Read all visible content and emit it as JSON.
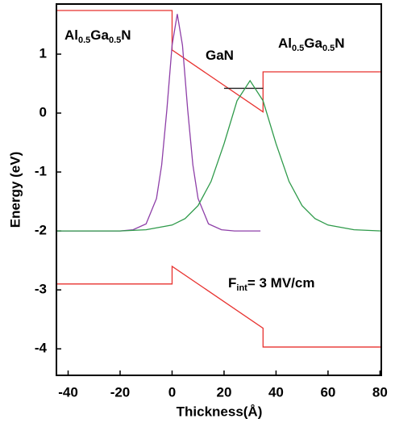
{
  "chart_data": {
    "type": "line",
    "x_label": "Thickness(Å)",
    "y_label": "Energy (eV)",
    "xlim": [
      -44.5,
      80.5
    ],
    "xticks": [
      -40,
      -20,
      0,
      20,
      40,
      60,
      80
    ],
    "ylim": [
      -4.45,
      1.85
    ],
    "yticks": [
      -4,
      -3,
      -2,
      -1,
      0,
      1
    ],
    "series": [
      {
        "color": "#e8322f",
        "x": [
          -44.5,
          0,
          0,
          35,
          35,
          80.5
        ],
        "values": [
          1.74,
          1.74,
          1.07,
          0.02,
          0.7,
          0.7
        ]
      },
      {
        "color": "#e8322f",
        "x": [
          -44.5,
          0,
          0,
          35,
          35,
          80.5
        ],
        "values": [
          -2.9,
          -2.9,
          -2.6,
          -3.65,
          -3.97,
          -3.97
        ]
      },
      {
        "color": "#222222",
        "x": [
          20,
          35
        ],
        "values": [
          0.42,
          0.42
        ]
      },
      {
        "color": "#8e3fa8",
        "x": [
          -44.5,
          -30,
          -20,
          -15,
          -10,
          -6,
          -4,
          -2,
          0,
          2,
          4,
          6,
          8,
          10,
          14,
          19,
          24,
          34
        ],
        "values": [
          -2,
          -2,
          -2,
          -1.98,
          -1.88,
          -1.45,
          -0.88,
          0.06,
          1.15,
          1.68,
          1.15,
          0.06,
          -0.88,
          -1.45,
          -1.88,
          -1.98,
          -2,
          -2
        ]
      },
      {
        "color": "#2e9a4a",
        "x": [
          -44.5,
          -20,
          -10,
          0,
          5,
          10,
          15,
          20,
          25,
          30,
          35,
          40,
          45,
          50,
          55,
          60,
          70,
          80.5
        ],
        "values": [
          -2,
          -2,
          -1.98,
          -1.9,
          -1.79,
          -1.57,
          -1.16,
          -0.52,
          0.21,
          0.55,
          0.21,
          -0.52,
          -1.16,
          -1.57,
          -1.79,
          -1.9,
          -1.98,
          -2
        ]
      }
    ],
    "annotations": [
      {
        "parts": [
          {
            "text": "Al"
          },
          {
            "text": "0.5",
            "sub": true
          },
          {
            "text": "Ga"
          },
          {
            "text": "0.5",
            "sub": true
          },
          {
            "text": "N"
          }
        ]
      },
      {
        "parts": [
          {
            "text": "GaN"
          }
        ]
      },
      {
        "parts": [
          {
            "text": "Al"
          },
          {
            "text": "0.5",
            "sub": true
          },
          {
            "text": "Ga"
          },
          {
            "text": "0.5",
            "sub": true
          },
          {
            "text": "N"
          }
        ]
      },
      {
        "parts": [
          {
            "text": "F"
          },
          {
            "text": "int",
            "sub": true
          },
          {
            "text": "= 3 MV/cm"
          }
        ]
      }
    ]
  }
}
